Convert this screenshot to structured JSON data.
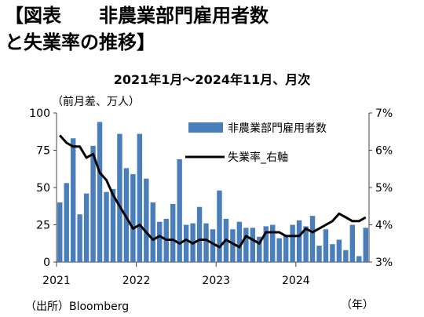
{
  "title_line1": "【図表　　非農業部門雇用者数",
  "title_line2": "と失業率の推移】",
  "subtitle": "2021年1月～2024年11月、月次",
  "unit_label": "（前月差、万人）",
  "source": "（出所）Bloomberg",
  "x_unit": "（年）",
  "chart_data": {
    "type": "bar",
    "title": "非農業部門雇用者数と失業率の推移",
    "x": [
      "2021-01",
      "2021-02",
      "2021-03",
      "2021-04",
      "2021-05",
      "2021-06",
      "2021-07",
      "2021-08",
      "2021-09",
      "2021-10",
      "2021-11",
      "2021-12",
      "2022-01",
      "2022-02",
      "2022-03",
      "2022-04",
      "2022-05",
      "2022-06",
      "2022-07",
      "2022-08",
      "2022-09",
      "2022-10",
      "2022-11",
      "2022-12",
      "2023-01",
      "2023-02",
      "2023-03",
      "2023-04",
      "2023-05",
      "2023-06",
      "2023-07",
      "2023-08",
      "2023-09",
      "2023-10",
      "2023-11",
      "2023-12",
      "2024-01",
      "2024-02",
      "2024-03",
      "2024-04",
      "2024-05",
      "2024-06",
      "2024-07",
      "2024-08",
      "2024-09",
      "2024-10",
      "2024-11"
    ],
    "year_labels": [
      "2021",
      "2022",
      "2023",
      "2024"
    ],
    "series": [
      {
        "name": "非農業部門雇用者数",
        "axis": "left",
        "type": "bar",
        "color": "#4a7ebb",
        "values": [
          40,
          53,
          83,
          32,
          46,
          78,
          94,
          47,
          49,
          86,
          63,
          59,
          86,
          56,
          40,
          27,
          29,
          39,
          69,
          25,
          26,
          37,
          26,
          22,
          48,
          29,
          22,
          27,
          23,
          23,
          17,
          24,
          25,
          16,
          18,
          25,
          28,
          24,
          31,
          11,
          22,
          12,
          15,
          8,
          25,
          4,
          23
        ]
      },
      {
        "name": "失業率_右軸",
        "axis": "right",
        "type": "line",
        "color": "#000000",
        "values": [
          6.4,
          6.2,
          6.1,
          6.1,
          5.8,
          5.9,
          5.4,
          5.2,
          4.8,
          4.5,
          4.2,
          3.9,
          4.0,
          3.8,
          3.6,
          3.7,
          3.6,
          3.6,
          3.5,
          3.6,
          3.5,
          3.6,
          3.6,
          3.5,
          3.4,
          3.6,
          3.5,
          3.4,
          3.7,
          3.6,
          3.5,
          3.8,
          3.8,
          3.8,
          3.7,
          3.7,
          3.7,
          3.9,
          3.8,
          3.9,
          4.0,
          4.1,
          4.3,
          4.2,
          4.1,
          4.1,
          4.2
        ]
      }
    ],
    "yleft": {
      "lim": [
        0,
        100
      ],
      "ticks": [
        0,
        25,
        50,
        75,
        100
      ]
    },
    "yright": {
      "lim": [
        3,
        7
      ],
      "ticks": [
        "3%",
        "4%",
        "5%",
        "6%",
        "7%"
      ]
    },
    "grid": false,
    "legend_position": "top-right"
  }
}
